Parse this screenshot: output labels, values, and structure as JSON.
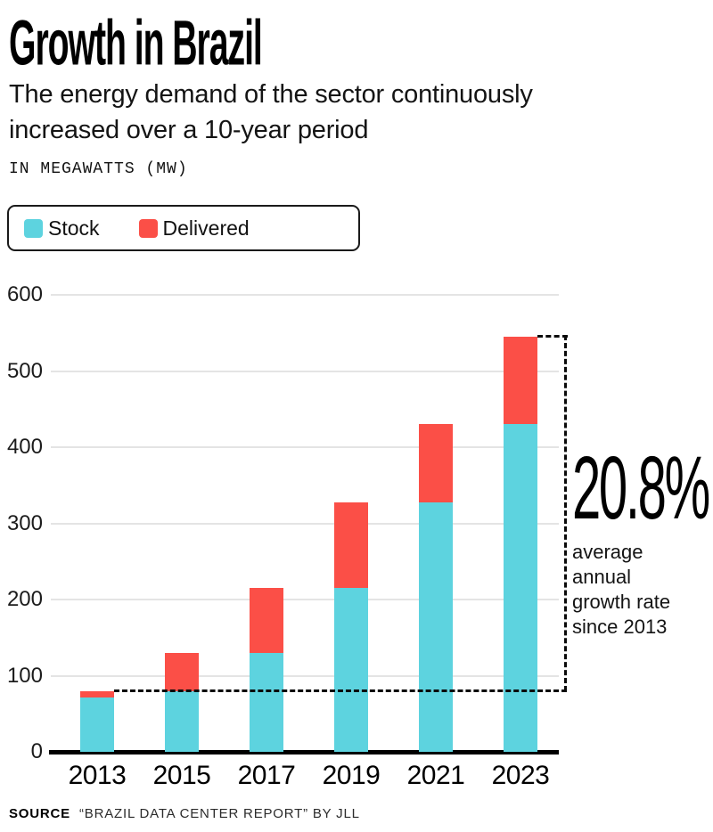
{
  "header": {
    "title": "Growth in Brazil",
    "subtitle_lines": [
      "The energy demand of the sector continuously",
      "increased over a 10-year period"
    ],
    "unit_label": "IN MEGAWATTS (MW)"
  },
  "source": {
    "label": "SOURCE",
    "text": "“BRAZIL DATA CENTER REPORT” BY JLL"
  },
  "chart_data": {
    "type": "bar",
    "stacked": true,
    "title": "Growth in Brazil",
    "subtitle": "The energy demand of the sector continuously increased over a 10-year period",
    "ylabel": "IN MEGAWATTS (MW)",
    "xlabel": "",
    "categories": [
      "2013",
      "2015",
      "2017",
      "2019",
      "2021",
      "2023"
    ],
    "series": [
      {
        "name": "Stock",
        "color": "#5dd3df",
        "values": [
          72,
          80,
          130,
          215,
          327,
          430
        ]
      },
      {
        "name": "Delivered",
        "color": "#fb4f47",
        "values": [
          8,
          50,
          85,
          112,
          103,
          115
        ]
      }
    ],
    "totals": [
      80,
      130,
      215,
      327,
      430,
      545
    ],
    "yticks": [
      0,
      100,
      200,
      300,
      400,
      500,
      600
    ],
    "ylim": [
      0,
      600
    ],
    "grid": true,
    "legend_position": "top-left",
    "annotation": {
      "value": "20.8%",
      "lines": [
        "average",
        "annual",
        "growth rate",
        "since 2013"
      ],
      "meaning": "average annual growth rate since 2013, bracketing from 2013 total to 2023 total"
    },
    "colors": {
      "grid": "#e4e4e4",
      "axis": "#000000",
      "text": "#141414"
    }
  }
}
